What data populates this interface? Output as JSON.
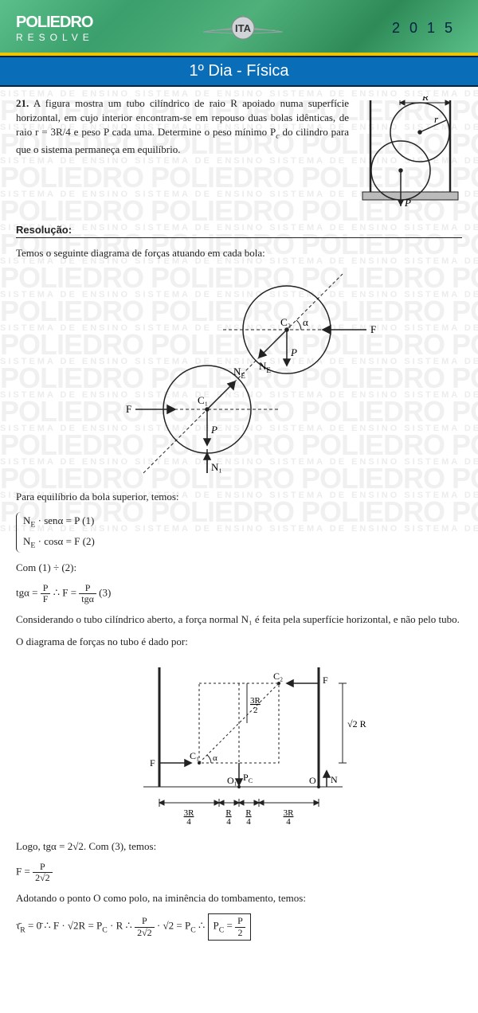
{
  "header": {
    "brand_top": "POLIEDRO",
    "brand_bottom": "RESOLVE",
    "center_label": "ITA",
    "year": "2015",
    "title": "1º Dia  - Física",
    "bg_colors": [
      "#5bbf8a",
      "#3a9f6c",
      "#4fb07a",
      "#2e8b57"
    ],
    "accent_stripe": "#f0c400",
    "title_bg": "#0a6db8"
  },
  "watermark": {
    "big": "POLIEDRO",
    "small": "SISTEMA  DE  ENSINO"
  },
  "problem": {
    "number": "21.",
    "text": "A figura mostra um tubo cilíndrico de raio R apoiado numa superfície horizontal, em cujo interior encontram-se em repouso duas bolas idênticas, de raio r = 3R/4 e peso P cada uma. Determine o peso mínimo P",
    "text2": " do cilindro para que o sistema permaneça em equilíbrio.",
    "sub": "c",
    "fig_labels": {
      "R": "R",
      "r": "r",
      "P": "P"
    }
  },
  "solution": {
    "header": "Resolução:",
    "p1": "Temos o seguinte diagrama de forças atuando em cada bola:",
    "diag1": {
      "C1": "C₁",
      "C2": "C₂",
      "alpha": "α",
      "F": "F",
      "P": "P",
      "NE": "N",
      "NE_sub": "E",
      "N1": "N₁"
    },
    "p2": "Para equilíbrio da bola superior, temos:",
    "eq1": "N",
    "eq1b": " · senα = P        (1)",
    "eq2": "N",
    "eq2b": " · cosα = F        (2)",
    "eq_sub": "E",
    "p3": "Com (1) ÷ (2):",
    "eq3_lhs": "tgα = ",
    "eq3_f1_num": "P",
    "eq3_f1_den": "F",
    "eq3_mid": " ∴ F = ",
    "eq3_f2_num": "P",
    "eq3_f2_den": "tgα",
    "eq3_tag": "   (3)",
    "p4": "Considerando o tubo cilíndrico aberto, a força normal N₁ é feita pela superfície horizontal, e não pelo tubo.",
    "p5": "O diagrama de forças no tubo é dado por:",
    "diag2": {
      "C1": "C₁",
      "C2": "C₂",
      "O": "O",
      "O1": "O₁",
      "F": "F",
      "PC": "P",
      "PC_sub": "C",
      "N": "N",
      "alpha": "α",
      "h_label": "√2 R",
      "v_label_num": "3R",
      "v_label_den": "2",
      "bot1_num": "3R",
      "bot1_den": "4",
      "bot2_num": "R",
      "bot2_den": "4",
      "bot3_num": "R",
      "bot3_den": "4",
      "bot4_num": "3R",
      "bot4_den": "4"
    },
    "p6a": "Logo,  tgα = 2√2.  Com (3), temos:",
    "eq4_lhs": "F = ",
    "eq4_num": "P",
    "eq4_den": "2√2",
    "p7": "Adotando o ponto O como polo, na iminência do tombamento, temos:",
    "eq5": "τ̄",
    "eq5_sub": "R",
    "eq5_body": " = 0̄ ∴ F · √2R = P",
    "eq5_body2": " · R ∴ ",
    "eq5_f_num": "P",
    "eq5_f_den": "2√2",
    "eq5_body3": " · √2 = P",
    "eq5_body4": " ∴ ",
    "box_lhs": "P",
    "box_eq": " = ",
    "box_num": "P",
    "box_den": "2",
    "pc_sub": "C"
  },
  "styling": {
    "body_font": "Georgia",
    "text_color": "#222222",
    "watermark_color": "#f0f0f0",
    "watermark_small_color": "#ececec",
    "diagram_stroke": "#222222",
    "box_border": "#222222"
  }
}
